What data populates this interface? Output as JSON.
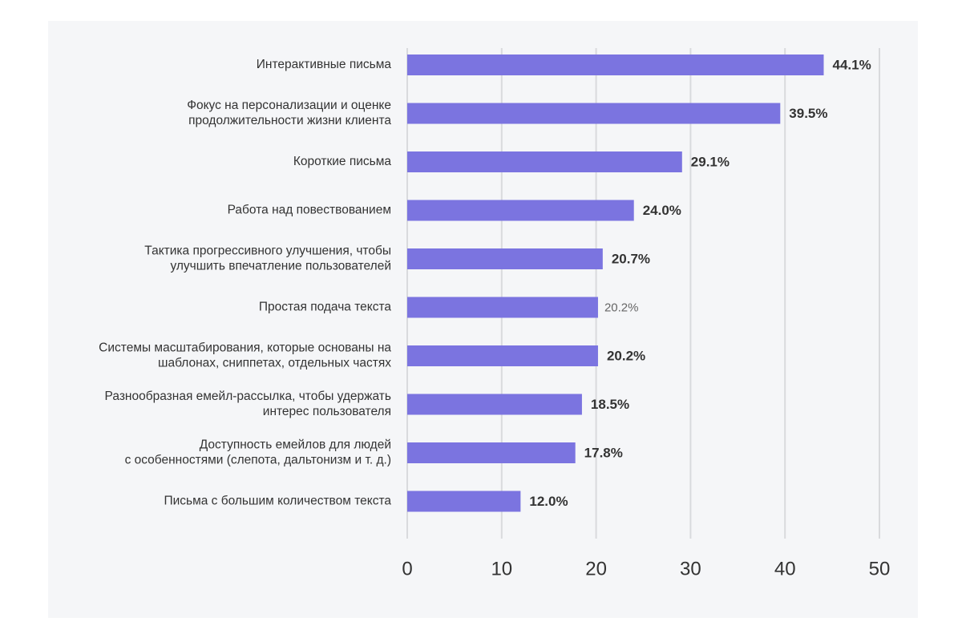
{
  "colors": {
    "bar": "#7b74e0",
    "grid": "#d9dadd",
    "panel": "#f5f6f8",
    "text": "#333333"
  },
  "chart_data": {
    "type": "bar",
    "orientation": "horizontal",
    "title": "",
    "xlabel": "",
    "ylabel": "",
    "xlim": [
      0,
      50
    ],
    "ticks": [
      0,
      10,
      20,
      30,
      40,
      50
    ],
    "grid": true,
    "categories": [
      [
        "Интерактивные письма"
      ],
      [
        "Фокус на персонализации и оценке",
        "продолжительности жизни клиента"
      ],
      [
        "Короткие письма"
      ],
      [
        "Работа над повествованием"
      ],
      [
        "Тактика прогрессивного улучшения, чтобы",
        "улучшить впечатление пользователей"
      ],
      [
        "Простая подача текста"
      ],
      [
        "Системы масштабирования, которые основаны на",
        "шаблонах, сниппетах, отдельных частях"
      ],
      [
        "Разнообразная емейл-рассылка, чтобы удержать",
        "интерес пользователя"
      ],
      [
        "Доступность емейлов для людей",
        "с особенностями (слепота, дальтонизм и т. д.)"
      ],
      [
        "Письма с большим количеством текста"
      ]
    ],
    "values": [
      44.1,
      39.5,
      29.1,
      24.0,
      20.7,
      20.2,
      20.2,
      18.5,
      17.8,
      12.0
    ],
    "value_labels": [
      "44.1%",
      "39.5%",
      "29.1%",
      "24.0%",
      "20.7%",
      "20.2%",
      "20.2%",
      "18.5%",
      "17.8%",
      "12.0%"
    ]
  }
}
